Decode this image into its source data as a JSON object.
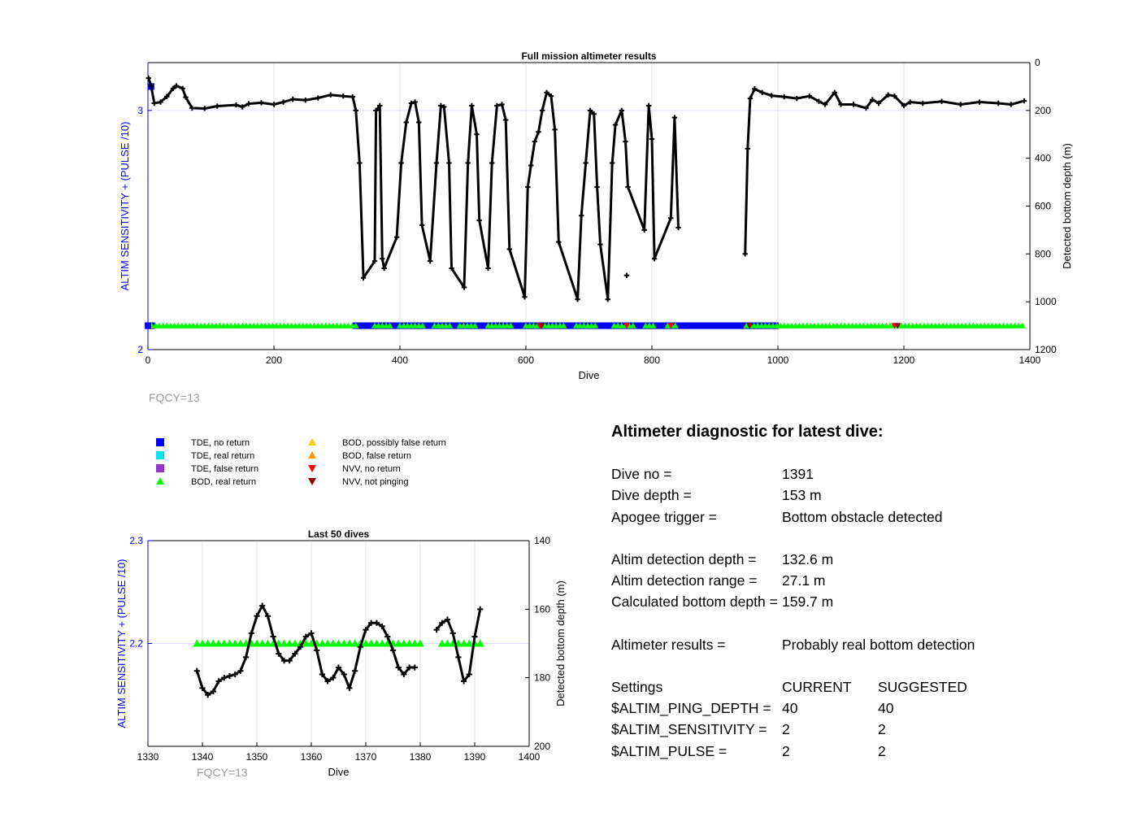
{
  "chart_data": [
    {
      "type": "scatter",
      "title": "Full mission altimeter results",
      "xlabel": "Dive",
      "ylabel_left": "ALTIM SENSITIVITY + (PULSE /10)",
      "ylabel_right": "Detected bottom depth (m)",
      "xlim": [
        0,
        1400
      ],
      "ylim_left": [
        2,
        3.2
      ],
      "ylim_right": [
        0,
        1200
      ],
      "right_axis_reversed": true,
      "xticks": [
        0,
        200,
        400,
        600,
        800,
        1000,
        1200,
        1400
      ],
      "yticks_left": [
        2,
        3
      ],
      "yticks_right": [
        0,
        200,
        400,
        600,
        800,
        1000,
        1200
      ],
      "grid": true,
      "annotation": "FQCY=13",
      "depth_series": {
        "name": "Detected bottom depth",
        "points": [
          [
            1,
            65
          ],
          [
            5,
            97
          ],
          [
            10,
            170
          ],
          [
            20,
            165
          ],
          [
            30,
            142
          ],
          [
            40,
            108
          ],
          [
            45,
            97
          ],
          [
            55,
            108
          ],
          [
            60,
            145
          ],
          [
            70,
            190
          ],
          [
            90,
            192
          ],
          [
            110,
            182
          ],
          [
            140,
            177
          ],
          [
            150,
            185
          ],
          [
            160,
            172
          ],
          [
            180,
            168
          ],
          [
            200,
            175
          ],
          [
            215,
            165
          ],
          [
            230,
            153
          ],
          [
            250,
            157
          ],
          [
            270,
            148
          ],
          [
            290,
            135
          ],
          [
            310,
            140
          ],
          [
            325,
            143
          ],
          [
            330,
            200
          ],
          [
            336,
            420
          ],
          [
            342,
            900
          ],
          [
            360,
            830
          ],
          [
            362,
            200
          ],
          [
            368,
            180
          ],
          [
            372,
            820
          ],
          [
            375,
            860
          ],
          [
            395,
            730
          ],
          [
            402,
            420
          ],
          [
            410,
            250
          ],
          [
            418,
            170
          ],
          [
            424,
            165
          ],
          [
            430,
            250
          ],
          [
            435,
            680
          ],
          [
            448,
            830
          ],
          [
            458,
            420
          ],
          [
            465,
            180
          ],
          [
            470,
            185
          ],
          [
            478,
            420
          ],
          [
            482,
            860
          ],
          [
            502,
            940
          ],
          [
            508,
            420
          ],
          [
            514,
            180
          ],
          [
            522,
            300
          ],
          [
            526,
            660
          ],
          [
            540,
            860
          ],
          [
            546,
            420
          ],
          [
            554,
            180
          ],
          [
            562,
            175
          ],
          [
            568,
            240
          ],
          [
            574,
            780
          ],
          [
            598,
            980
          ],
          [
            603,
            520
          ],
          [
            608,
            430
          ],
          [
            614,
            330
          ],
          [
            620,
            290
          ],
          [
            626,
            200
          ],
          [
            633,
            125
          ],
          [
            640,
            140
          ],
          [
            646,
            280
          ],
          [
            652,
            750
          ],
          [
            682,
            990
          ],
          [
            688,
            640
          ],
          [
            695,
            420
          ],
          [
            702,
            200
          ],
          [
            708,
            215
          ],
          [
            713,
            520
          ],
          [
            718,
            760
          ],
          [
            730,
            990
          ],
          [
            737,
            420
          ],
          [
            742,
            260
          ],
          [
            752,
            200
          ],
          [
            758,
            330
          ],
          [
            762,
            520
          ],
          [
            788,
            700
          ],
          [
            795,
            180
          ],
          [
            800,
            320
          ],
          [
            804,
            820
          ],
          [
            830,
            650
          ],
          [
            836,
            230
          ],
          [
            842,
            690
          ],
          [
            948,
            800
          ],
          [
            952,
            360
          ],
          [
            956,
            150
          ],
          [
            963,
            110
          ],
          [
            975,
            125
          ],
          [
            990,
            138
          ],
          [
            1010,
            143
          ],
          [
            1030,
            150
          ],
          [
            1050,
            140
          ],
          [
            1065,
            162
          ],
          [
            1075,
            175
          ],
          [
            1090,
            125
          ],
          [
            1100,
            175
          ],
          [
            1120,
            175
          ],
          [
            1140,
            190
          ],
          [
            1150,
            155
          ],
          [
            1160,
            170
          ],
          [
            1175,
            135
          ],
          [
            1185,
            140
          ],
          [
            1200,
            180
          ],
          [
            1210,
            165
          ],
          [
            1230,
            170
          ],
          [
            1260,
            162
          ],
          [
            1290,
            175
          ],
          [
            1320,
            165
          ],
          [
            1350,
            170
          ],
          [
            1370,
            175
          ],
          [
            1391,
            160
          ]
        ],
        "outliers": [
          [
            760,
            890
          ]
        ]
      },
      "marker_rows": [
        {
          "name": "TDE, no return",
          "symbol": "square",
          "color": "#0000ff",
          "value": 2.1,
          "ranges": [
            [
              0,
              10
            ],
            [
              330,
              1000
            ]
          ]
        },
        {
          "name": "BOD, real return",
          "symbol": "triangle-up",
          "color": "#00ff00",
          "value": 2.1,
          "ranges": [
            [
              0,
              330
            ],
            [
              360,
              385
            ],
            [
              400,
              440
            ],
            [
              455,
              480
            ],
            [
              495,
              520
            ],
            [
              540,
              580
            ],
            [
              600,
              660
            ],
            [
              680,
              715
            ],
            [
              740,
              770
            ],
            [
              790,
              805
            ],
            [
              825,
              840
            ],
            [
              950,
              1391
            ]
          ]
        },
        {
          "name": "BOD, possibly false return",
          "symbol": "triangle-up",
          "color": "#ffcc00",
          "points": [
            [
              2,
              2.1
            ]
          ]
        },
        {
          "name": "TDE, no return (early)",
          "symbol": "square",
          "color": "#0000ff",
          "points": [
            [
              5,
              3.1
            ],
            [
              0,
              2.1
            ]
          ]
        },
        {
          "name": "NVV, no return",
          "symbol": "triangle-down",
          "color": "#ff0000",
          "points": [
            [
              622,
              2.1
            ],
            [
              760,
              2.1
            ],
            [
              830,
              2.1
            ],
            [
              1185,
              2.1
            ]
          ]
        },
        {
          "name": "NVV, not pinging",
          "symbol": "triangle-down",
          "color": "#8b0000",
          "points": [
            [
              625,
              2.1
            ],
            [
              955,
              2.1
            ],
            [
              1190,
              2.1
            ]
          ]
        }
      ]
    },
    {
      "type": "scatter",
      "title": "Last 50 dives",
      "xlabel": "Dive",
      "ylabel_left": "ALTIM SENSITIVITY + (PULSE /10)",
      "ylabel_right": "Detected bottom depth (m)",
      "xlim": [
        1330,
        1400
      ],
      "ylim_left": [
        2.1,
        2.3
      ],
      "ylim_right": [
        140,
        200
      ],
      "right_axis_reversed": true,
      "xticks": [
        1330,
        1340,
        1350,
        1360,
        1370,
        1380,
        1390,
        1400
      ],
      "yticks_left": [
        2.2,
        2.3
      ],
      "yticks_right": [
        140,
        160,
        180,
        200
      ],
      "grid": true,
      "annotation": "FQCY=13",
      "depth_series": {
        "name": "Detected bottom depth",
        "points": [
          [
            1339,
            178
          ],
          [
            1340,
            183
          ],
          [
            1341,
            185
          ],
          [
            1342,
            184
          ],
          [
            1343,
            181
          ],
          [
            1344,
            180
          ],
          [
            1345,
            179.5
          ],
          [
            1346,
            179
          ],
          [
            1347,
            178
          ],
          [
            1348,
            174
          ],
          [
            1349,
            167
          ],
          [
            1350,
            162
          ],
          [
            1351,
            159
          ],
          [
            1352,
            162
          ],
          [
            1353,
            168
          ],
          [
            1354,
            173
          ],
          [
            1355,
            175
          ],
          [
            1356,
            175
          ],
          [
            1357,
            173
          ],
          [
            1358,
            171
          ],
          [
            1359,
            168
          ],
          [
            1360,
            167
          ],
          [
            1361,
            172
          ],
          [
            1362,
            179
          ],
          [
            1363,
            181
          ],
          [
            1364,
            180
          ],
          [
            1365,
            177
          ],
          [
            1366,
            179
          ],
          [
            1367,
            183
          ],
          [
            1368,
            178
          ],
          [
            1369,
            171
          ],
          [
            1370,
            166
          ],
          [
            1371,
            164
          ],
          [
            1372,
            164
          ],
          [
            1373,
            165
          ],
          [
            1374,
            168
          ],
          [
            1375,
            172
          ],
          [
            1376,
            177
          ],
          [
            1377,
            179
          ],
          [
            1378,
            177
          ],
          [
            1379,
            177
          ],
          [
            1383,
            166
          ],
          [
            1384,
            164
          ],
          [
            1385,
            163
          ],
          [
            1386,
            167
          ],
          [
            1387,
            174
          ],
          [
            1388,
            181
          ],
          [
            1389,
            179
          ],
          [
            1390,
            168
          ],
          [
            1391,
            160
          ]
        ]
      },
      "marker_rows": [
        {
          "name": "BOD, real return",
          "symbol": "triangle-up",
          "color": "#00ff00",
          "value": 2.2,
          "x": [
            1339,
            1340,
            1341,
            1342,
            1343,
            1344,
            1345,
            1346,
            1347,
            1348,
            1349,
            1350,
            1351,
            1352,
            1353,
            1354,
            1355,
            1356,
            1357,
            1358,
            1359,
            1360,
            1361,
            1362,
            1363,
            1364,
            1365,
            1366,
            1367,
            1368,
            1369,
            1370,
            1371,
            1372,
            1373,
            1374,
            1375,
            1376,
            1377,
            1378,
            1379,
            1380,
            1384,
            1385,
            1386,
            1387,
            1388,
            1389,
            1390,
            1391
          ]
        }
      ]
    }
  ],
  "legend": {
    "items": [
      {
        "label": "TDE, no return",
        "symbol": "square",
        "color": "#0000ff"
      },
      {
        "label": "TDE, real return",
        "symbol": "square",
        "color": "#00e5ee"
      },
      {
        "label": "TDE, false return",
        "symbol": "square",
        "color": "#9933cc"
      },
      {
        "label": "BOD, real return",
        "symbol": "triangle-up",
        "color": "#00ff00"
      },
      {
        "label": "BOD, possibly false return",
        "symbol": "triangle-up",
        "color": "#ffcc00"
      },
      {
        "label": "BOD, false return",
        "symbol": "triangle-up",
        "color": "#ff9900"
      },
      {
        "label": "NVV, no return",
        "symbol": "triangle-down",
        "color": "#ff0000"
      },
      {
        "label": "NVV, not pinging",
        "symbol": "triangle-down",
        "color": "#8b0000"
      }
    ]
  },
  "diagnostic": {
    "title": "Altimeter diagnostic for latest dive:",
    "dive_no_label": "Dive no =",
    "dive_no": "1391",
    "dive_depth_label": "Dive depth =",
    "dive_depth": "153 m",
    "apogee_label": "Apogee trigger =",
    "apogee": "Bottom obstacle detected",
    "det_depth_label": "Altim detection depth =",
    "det_depth": "132.6 m",
    "det_range_label": "Altim detection range =",
    "det_range": "27.1 m",
    "calc_depth_label": "Calculated bottom depth =",
    "calc_depth": "159.7 m",
    "results_label": "Altimeter results =",
    "results": "Probably real bottom detection",
    "settings_label": "Settings",
    "current_label": "CURRENT",
    "suggested_label": "SUGGESTED",
    "settings": [
      {
        "name": "$ALTIM_PING_DEPTH =",
        "current": "40",
        "suggested": "40"
      },
      {
        "name": "$ALTIM_SENSITIVITY =",
        "current": "2",
        "suggested": "2"
      },
      {
        "name": "$ALTIM_PULSE =",
        "current": "2",
        "suggested": "2"
      }
    ]
  }
}
